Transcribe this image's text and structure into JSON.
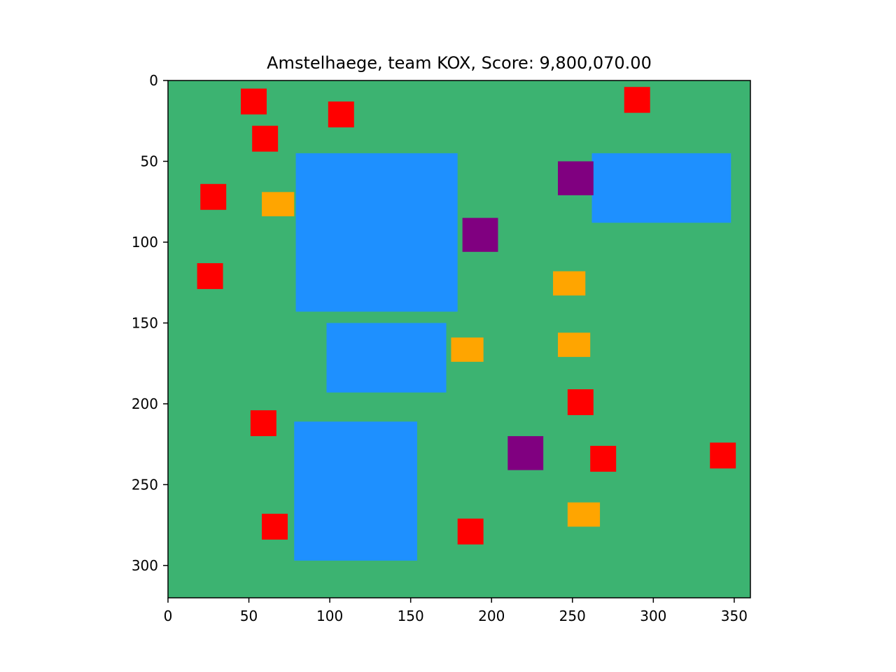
{
  "chart_data": {
    "type": "map",
    "title": "Amstelhaege, team KOX, Score: 9,800,070.00",
    "xlabel": "",
    "ylabel": "",
    "xlim": [
      0,
      360
    ],
    "ylim": [
      320,
      0
    ],
    "y_axis_inverted": true,
    "grid": false,
    "legend": "none",
    "x_ticks": [
      0,
      50,
      100,
      150,
      200,
      250,
      300,
      350
    ],
    "x_tick_labels": [
      "0",
      "50",
      "100",
      "150",
      "200",
      "250",
      "300",
      "350"
    ],
    "y_ticks": [
      0,
      50,
      100,
      150,
      200,
      250,
      300
    ],
    "y_tick_labels": [
      "0",
      "50",
      "100",
      "150",
      "200",
      "250",
      "300"
    ],
    "colors": {
      "ground": "#3cb371",
      "water": "#1e90ff",
      "small_house": "#ff0000",
      "medium_house": "#ffa500",
      "large_house": "#800080"
    },
    "series": [
      {
        "kind": "water",
        "rects": [
          {
            "x": 79,
            "y": 45,
            "w": 100,
            "h": 98
          },
          {
            "x": 98,
            "y": 150,
            "w": 74,
            "h": 43
          },
          {
            "x": 78,
            "y": 211,
            "w": 76,
            "h": 86
          },
          {
            "x": 262,
            "y": 45,
            "w": 86,
            "h": 43
          }
        ]
      },
      {
        "kind": "small_house",
        "rects": [
          {
            "x": 45,
            "y": 5,
            "w": 16,
            "h": 16
          },
          {
            "x": 99,
            "y": 13,
            "w": 16,
            "h": 16
          },
          {
            "x": 52,
            "y": 28,
            "w": 16,
            "h": 16
          },
          {
            "x": 282,
            "y": 4,
            "w": 16,
            "h": 16
          },
          {
            "x": 20,
            "y": 64,
            "w": 16,
            "h": 16
          },
          {
            "x": 18,
            "y": 113,
            "w": 16,
            "h": 16
          },
          {
            "x": 247,
            "y": 191,
            "w": 16,
            "h": 16
          },
          {
            "x": 51,
            "y": 204,
            "w": 16,
            "h": 16
          },
          {
            "x": 261,
            "y": 226,
            "w": 16,
            "h": 16
          },
          {
            "x": 335,
            "y": 224,
            "w": 16,
            "h": 16
          },
          {
            "x": 58,
            "y": 268,
            "w": 16,
            "h": 16
          },
          {
            "x": 179,
            "y": 271,
            "w": 16,
            "h": 16
          }
        ]
      },
      {
        "kind": "medium_house",
        "rects": [
          {
            "x": 58,
            "y": 69,
            "w": 20,
            "h": 15
          },
          {
            "x": 238,
            "y": 118,
            "w": 20,
            "h": 15
          },
          {
            "x": 175,
            "y": 159,
            "w": 20,
            "h": 15
          },
          {
            "x": 241,
            "y": 156,
            "w": 20,
            "h": 15
          },
          {
            "x": 247,
            "y": 261,
            "w": 20,
            "h": 15
          }
        ]
      },
      {
        "kind": "large_house",
        "rects": [
          {
            "x": 241,
            "y": 50,
            "w": 22,
            "h": 21
          },
          {
            "x": 182,
            "y": 85,
            "w": 22,
            "h": 21
          },
          {
            "x": 210,
            "y": 220,
            "w": 22,
            "h": 21
          }
        ]
      }
    ]
  }
}
